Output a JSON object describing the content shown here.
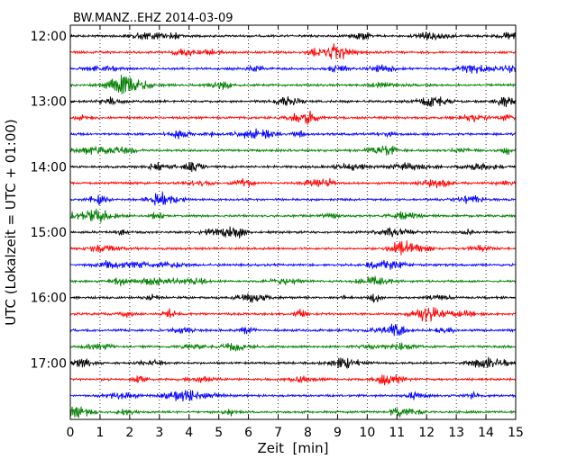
{
  "chart_data": {
    "type": "line",
    "title": "BW.MANZ..EHZ 2014-03-09",
    "xlabel": "Zeit  [min]",
    "ylabel": "UTC (Lokalzeit = UTC + 01:00)",
    "xlim": [
      0,
      15
    ],
    "x_ticks": [
      "0",
      "1",
      "2",
      "3",
      "4",
      "5",
      "6",
      "7",
      "8",
      "9",
      "10",
      "11",
      "12",
      "13",
      "14",
      "15"
    ],
    "y_tick_labels": [
      "12:00",
      "13:00",
      "14:00",
      "15:00",
      "16:00",
      "17:00"
    ],
    "rows_per_hour": 4,
    "row_minutes": 15,
    "row_start": "12:00",
    "row_count": 24,
    "trace_colors": [
      "#000000",
      "#ff0000",
      "#0000ff",
      "#007f00"
    ],
    "grid": {
      "x": "dotted",
      "y": "none"
    }
  }
}
